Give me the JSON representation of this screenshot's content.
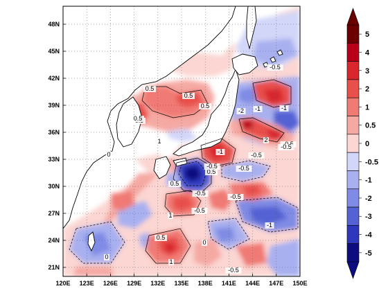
{
  "map": {
    "lon_ticks": [
      "120E",
      "123E",
      "126E",
      "129E",
      "132E",
      "135E",
      "138E",
      "141E",
      "144E",
      "147E",
      "150E"
    ],
    "lat_ticks": [
      "21N",
      "24N",
      "27N",
      "30N",
      "33N",
      "36N",
      "39N",
      "42N",
      "45N",
      "48N"
    ],
    "lon_range": [
      120,
      150
    ],
    "lat_range": [
      20,
      50
    ],
    "grid": "dotted"
  },
  "colorbar": {
    "labels": [
      "5",
      "4",
      "3",
      "2",
      "1",
      "0.5",
      "0",
      "-0.5",
      "-1",
      "-2",
      "-3",
      "-4",
      "-5"
    ],
    "colors": [
      "#6b0000",
      "#b8001a",
      "#d8282e",
      "#e8504c",
      "#f07a74",
      "#f5a9a3",
      "#fbd6d2",
      "#d2d6f8",
      "#a8b0ef",
      "#7f8be4",
      "#5562d4",
      "#2f37bd",
      "#0d0d80"
    ]
  },
  "contour_labels": [
    "0.5",
    "0.5",
    "0.5",
    "0.5",
    "-0.5",
    "-2",
    "-1",
    "-1",
    "-0.5",
    "2",
    "-0.5",
    "-0.5",
    "-0.5",
    "0.5",
    "0.5",
    "-1",
    "0.5",
    "1",
    "-0.5",
    "0",
    "0",
    "-0.5",
    "-1",
    "1",
    "0.5",
    "1",
    "-0.5",
    "0",
    "-0.5",
    "-0.5"
  ]
}
